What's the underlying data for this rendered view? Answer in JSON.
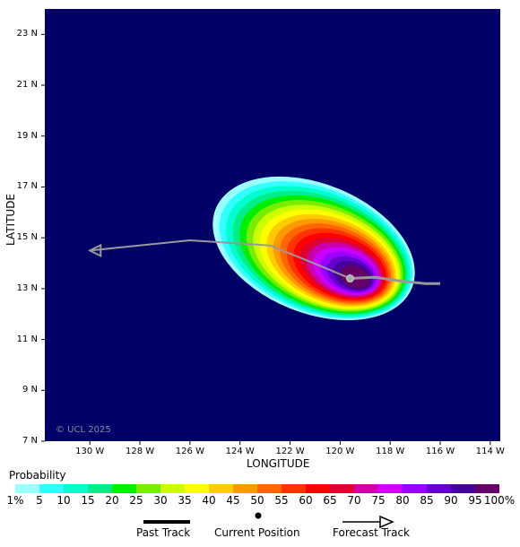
{
  "map": {
    "background_color": "#000066",
    "copyright": "© UCL 2025",
    "xlabel": "LONGITUDE",
    "ylabel": "LATITUDE",
    "lon_ticks": [
      "130 W",
      "128 W",
      "126 W",
      "124 W",
      "122 W",
      "120 W",
      "118 W",
      "116 W",
      "114 W"
    ],
    "lat_ticks": [
      "23 N",
      "21 N",
      "19 N",
      "17 N",
      "15 N",
      "13 N",
      "11 N",
      "9 N",
      "7 N"
    ],
    "lon_range": [
      -131.8,
      -113.6
    ],
    "lat_range": [
      7.0,
      24.0
    ],
    "current_position": {
      "lon": -119.6,
      "lat": 13.4
    },
    "past_track": [
      [
        -119.6,
        13.4
      ],
      [
        -118.6,
        13.45
      ],
      [
        -117.6,
        13.3
      ],
      [
        -116.6,
        13.2
      ],
      [
        -116.0,
        13.2
      ]
    ],
    "forecast_track": [
      [
        -119.6,
        13.4
      ],
      [
        -120.8,
        13.9
      ],
      [
        -122.8,
        14.7
      ],
      [
        -126.0,
        14.9
      ],
      [
        -130.0,
        14.5
      ]
    ]
  },
  "legend": {
    "title": "Probability",
    "scale_labels": [
      "1%",
      "5",
      "10",
      "15",
      "20",
      "25",
      "30",
      "35",
      "40",
      "45",
      "50",
      "55",
      "60",
      "65",
      "70",
      "75",
      "80",
      "85",
      "90",
      "95",
      "100%"
    ],
    "colors": [
      "#99ffff",
      "#33ffff",
      "#00ffcc",
      "#00ee88",
      "#00ee00",
      "#77ee00",
      "#ccff00",
      "#ffff00",
      "#ffcc00",
      "#ff9900",
      "#ff6600",
      "#ff3300",
      "#ff0000",
      "#dd0033",
      "#cc00aa",
      "#cc00ff",
      "#9900ff",
      "#6600cc",
      "#440099",
      "#660066"
    ],
    "past_track_label": "Past Track",
    "current_position_label": "Current Position",
    "forecast_track_label": "Forecast Track"
  }
}
